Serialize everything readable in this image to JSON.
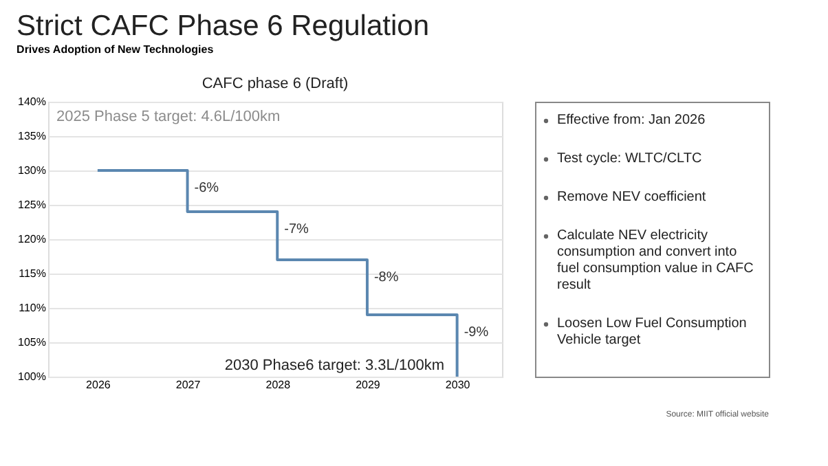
{
  "chart_data": [
    {
      "type": "step",
      "title": "Strict CAFC Phase 6 Regulation",
      "subtitle": "Drives Adoption of New Technologies",
      "x": [
        2026,
        2027,
        2028,
        2029,
        2030
      ],
      "series": [
        {
          "color": "#5b87b0",
          "values": [
            130,
            124,
            117,
            109,
            100
          ]
        }
      ],
      "xlim": [
        2025.45,
        2030.5
      ],
      "xticks": [
        2026,
        2027,
        2028,
        2029,
        2030
      ],
      "ylim": [
        100,
        140
      ],
      "yticks": [
        {
          "value": 100,
          "label": "100%"
        },
        {
          "value": 105,
          "label": "105%"
        },
        {
          "value": 110,
          "label": "110%"
        },
        {
          "value": 115,
          "label": "115%"
        },
        {
          "value": 120,
          "label": "120%"
        },
        {
          "value": 125,
          "label": "125%"
        },
        {
          "value": 130,
          "label": "130%"
        },
        {
          "value": 135,
          "label": "135%"
        },
        {
          "value": 140,
          "label": "140%"
        }
      ],
      "grid": "y",
      "marker": "none",
      "line_style": "solid",
      "annotations": [
        "CAFC phase 6 (Draft)",
        "2025 Phase 5 target: 4.6L/100km",
        "2030 Phase6 target: 3.3L/100km",
        {
          "text": "-6%",
          "x": 2027,
          "y": 127.5
        },
        {
          "text": "-7%",
          "x": 2028,
          "y": 121.5
        },
        {
          "text": "-8%",
          "x": 2029,
          "y": 114.5
        },
        {
          "text": "-9%",
          "x": 2030,
          "y": 106.5
        }
      ]
    },
    {
      "type": "other",
      "annotations": [
        "Effective from: Jan 2026",
        "Test cycle: WLTC/CLTC",
        "Remove NEV coefficient",
        "Calculate NEV electricity consumption and convert into fuel consumption value in CAFC result",
        "Loosen Low Fuel Consumption Vehicle target",
        "Source: MIIT official website"
      ]
    }
  ]
}
